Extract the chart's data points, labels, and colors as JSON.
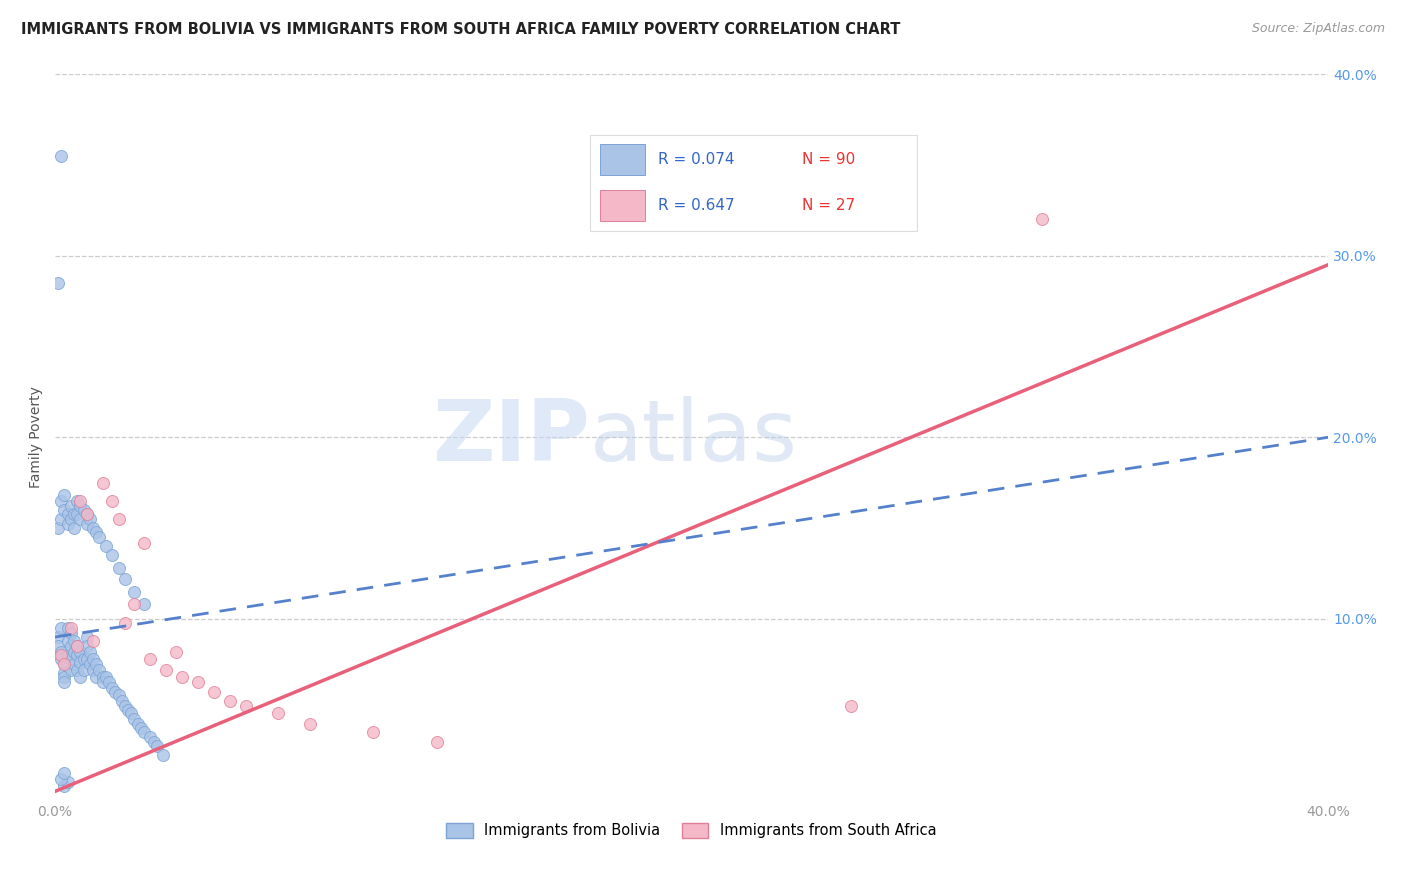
{
  "title": "IMMIGRANTS FROM BOLIVIA VS IMMIGRANTS FROM SOUTH AFRICA FAMILY POVERTY CORRELATION CHART",
  "source": "Source: ZipAtlas.com",
  "ylabel": "Family Poverty",
  "xlim": [
    0.0,
    0.4
  ],
  "ylim": [
    0.0,
    0.4
  ],
  "xtick_labels": [
    "0.0%",
    "",
    "",
    "",
    "40.0%"
  ],
  "xtick_values": [
    0.0,
    0.1,
    0.2,
    0.3,
    0.4
  ],
  "ytick_labels": [
    "10.0%",
    "20.0%",
    "30.0%",
    "40.0%"
  ],
  "ytick_values": [
    0.1,
    0.2,
    0.3,
    0.4
  ],
  "bolivia_color": "#aac4e8",
  "bolivia_edge": "#7ba3d4",
  "south_africa_color": "#f4b8c8",
  "south_africa_edge": "#e08098",
  "bolivia_line_color": "#5580cc",
  "south_africa_line_color": "#e8607a",
  "R_bolivia": 0.074,
  "N_bolivia": 90,
  "R_south_africa": 0.647,
  "N_south_africa": 27,
  "legend_label_bolivia": "Immigrants from Bolivia",
  "legend_label_south_africa": "Immigrants from South Africa",
  "watermark_zip": "ZIP",
  "watermark_atlas": "atlas",
  "bolivia_x": [
    0.001,
    0.001,
    0.002,
    0.002,
    0.002,
    0.003,
    0.003,
    0.003,
    0.003,
    0.004,
    0.004,
    0.004,
    0.005,
    0.005,
    0.005,
    0.005,
    0.006,
    0.006,
    0.006,
    0.007,
    0.007,
    0.007,
    0.008,
    0.008,
    0.008,
    0.009,
    0.009,
    0.01,
    0.01,
    0.01,
    0.011,
    0.011,
    0.012,
    0.012,
    0.013,
    0.013,
    0.014,
    0.015,
    0.015,
    0.016,
    0.017,
    0.018,
    0.019,
    0.02,
    0.021,
    0.022,
    0.023,
    0.024,
    0.025,
    0.026,
    0.027,
    0.028,
    0.03,
    0.031,
    0.032,
    0.034,
    0.001,
    0.002,
    0.002,
    0.003,
    0.003,
    0.004,
    0.004,
    0.005,
    0.005,
    0.006,
    0.006,
    0.007,
    0.007,
    0.008,
    0.008,
    0.009,
    0.01,
    0.01,
    0.011,
    0.012,
    0.013,
    0.014,
    0.016,
    0.018,
    0.02,
    0.022,
    0.025,
    0.028,
    0.001,
    0.002,
    0.003,
    0.004,
    0.002,
    0.003
  ],
  "bolivia_y": [
    0.09,
    0.085,
    0.095,
    0.082,
    0.078,
    0.075,
    0.07,
    0.068,
    0.065,
    0.095,
    0.088,
    0.08,
    0.092,
    0.085,
    0.078,
    0.072,
    0.088,
    0.082,
    0.075,
    0.085,
    0.08,
    0.072,
    0.082,
    0.076,
    0.068,
    0.078,
    0.072,
    0.09,
    0.085,
    0.078,
    0.082,
    0.075,
    0.078,
    0.072,
    0.075,
    0.068,
    0.072,
    0.068,
    0.065,
    0.068,
    0.065,
    0.062,
    0.06,
    0.058,
    0.055,
    0.052,
    0.05,
    0.048,
    0.045,
    0.042,
    0.04,
    0.038,
    0.035,
    0.032,
    0.03,
    0.025,
    0.15,
    0.165,
    0.155,
    0.168,
    0.16,
    0.158,
    0.152,
    0.162,
    0.155,
    0.158,
    0.15,
    0.165,
    0.158,
    0.162,
    0.155,
    0.16,
    0.158,
    0.152,
    0.155,
    0.15,
    0.148,
    0.145,
    0.14,
    0.135,
    0.128,
    0.122,
    0.115,
    0.108,
    0.285,
    0.355,
    0.008,
    0.01,
    0.012,
    0.015
  ],
  "south_africa_x": [
    0.002,
    0.003,
    0.005,
    0.007,
    0.008,
    0.01,
    0.012,
    0.015,
    0.018,
    0.02,
    0.022,
    0.025,
    0.028,
    0.03,
    0.035,
    0.038,
    0.04,
    0.045,
    0.05,
    0.055,
    0.06,
    0.07,
    0.08,
    0.1,
    0.12,
    0.25,
    0.31
  ],
  "south_africa_y": [
    0.08,
    0.075,
    0.095,
    0.085,
    0.165,
    0.158,
    0.088,
    0.175,
    0.165,
    0.155,
    0.098,
    0.108,
    0.142,
    0.078,
    0.072,
    0.082,
    0.068,
    0.065,
    0.06,
    0.055,
    0.052,
    0.048,
    0.042,
    0.038,
    0.032,
    0.052,
    0.32
  ],
  "bolivia_line_x": [
    0.0,
    0.4
  ],
  "bolivia_line_y": [
    0.09,
    0.2
  ],
  "south_africa_line_x": [
    0.0,
    0.4
  ],
  "south_africa_line_y": [
    0.005,
    0.295
  ]
}
